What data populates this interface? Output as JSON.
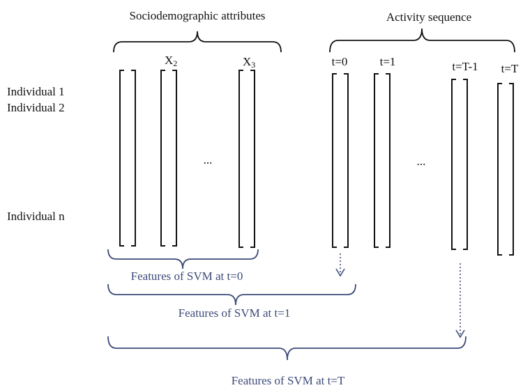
{
  "headers": {
    "sociodemographic": "Sociodemographic attributes",
    "activity": "Activity sequence"
  },
  "columns": [
    {
      "base": "X",
      "sub": "2"
    },
    {
      "base": "X",
      "sub": "3"
    }
  ],
  "time_labels": [
    "t=0",
    "t=1",
    "t=T-1",
    "t=T"
  ],
  "rows": [
    "Individual 1",
    "Individual 2",
    "Individual n"
  ],
  "ellipses": [
    "...",
    "..."
  ],
  "features": [
    "Features of SVM at t=0",
    "Features of SVM at t=1",
    "Features of SVM at t=T"
  ]
}
